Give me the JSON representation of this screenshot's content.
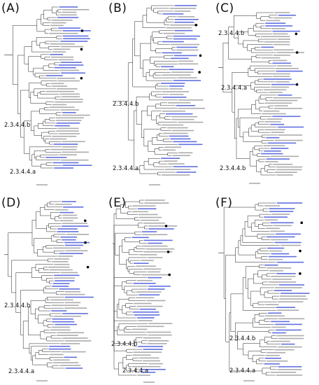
{
  "panels": [
    {
      "label": "(A)",
      "clade_b": "2.3.4.4.b",
      "clade_a": "2.3.4.4.a"
    },
    {
      "label": "(B)",
      "clade_b": "2.3.4.4.b",
      "clade_a": "2.3.4.4.a"
    },
    {
      "label": "(C)",
      "clade_b": "2.3.4.4.b",
      "clade_a": "2.3.4.4.a",
      "clade_b2": "2.3.4.4.b"
    },
    {
      "label": "(D)",
      "clade_b": "2.3.4.4.b",
      "clade_a": "2.3.4.4.a"
    },
    {
      "label": "(E)",
      "clade_b": "2.3.4.4.b",
      "clade_a": "2.3.4.4.a"
    },
    {
      "label": "(F)",
      "clade_b": "2.3.4.4.b",
      "clade_a": "2.3.4.4.a"
    }
  ],
  "colors": {
    "branch": "#222222",
    "highlight_taxa": "#2b3fd6",
    "other_taxa": "#444444",
    "marker": "#000000"
  }
}
